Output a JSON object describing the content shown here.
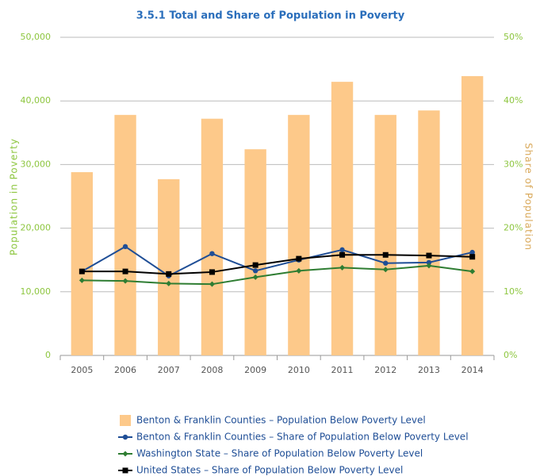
{
  "chart_data": {
    "type": "bar_line",
    "title": "3.5.1 Total and Share of Population in Poverty",
    "y_label": "Population in Poverty",
    "y2_label": "Share of Population",
    "categories": [
      "2005",
      "2006",
      "2007",
      "2008",
      "2009",
      "2010",
      "2011",
      "2012",
      "2013",
      "2014"
    ],
    "ylim": [
      0,
      50000
    ],
    "yticks": [
      {
        "value": 0,
        "label": "0"
      },
      {
        "value": 10000,
        "label": "10,000"
      },
      {
        "value": 20000,
        "label": "20,000"
      },
      {
        "value": 30000,
        "label": "30,000"
      },
      {
        "value": 40000,
        "label": "40,000"
      },
      {
        "value": 50000,
        "label": "50,000"
      }
    ],
    "y2lim": [
      0,
      50
    ],
    "y2ticks": [
      {
        "value": 0,
        "label": "0%"
      },
      {
        "value": 10,
        "label": "10%"
      },
      {
        "value": 20,
        "label": "20%"
      },
      {
        "value": 30,
        "label": "30%"
      },
      {
        "value": 40,
        "label": "40%"
      },
      {
        "value": 50,
        "label": "50%"
      }
    ],
    "grid": true,
    "series": [
      {
        "name": "Benton & Franklin Counties – Population Below Poverty Level",
        "type": "bar",
        "color": "#fdc98a",
        "axis": "y",
        "values": [
          28800,
          37800,
          27700,
          37200,
          32400,
          37800,
          43000,
          37800,
          38500,
          43900
        ]
      },
      {
        "name": "Benton & Franklin Counties – Share of Population Below Poverty Level",
        "type": "line",
        "marker": "circle",
        "color": "#1f4e96",
        "axis": "y2",
        "values": [
          13.2,
          17.1,
          12.5,
          16.0,
          13.3,
          15.0,
          16.6,
          14.5,
          14.6,
          16.2
        ]
      },
      {
        "name": "Washington State – Share of Population Below Poverty Level",
        "type": "line",
        "marker": "diamond",
        "color": "#2e7d32",
        "axis": "y2",
        "values": [
          11.8,
          11.7,
          11.3,
          11.2,
          12.3,
          13.3,
          13.8,
          13.5,
          14.1,
          13.2
        ]
      },
      {
        "name": "United States – Share of Population Below Poverty Level",
        "type": "line",
        "marker": "square",
        "color": "#000000",
        "axis": "y2",
        "values": [
          13.2,
          13.2,
          12.8,
          13.1,
          14.2,
          15.2,
          15.8,
          15.8,
          15.7,
          15.5
        ]
      }
    ]
  }
}
